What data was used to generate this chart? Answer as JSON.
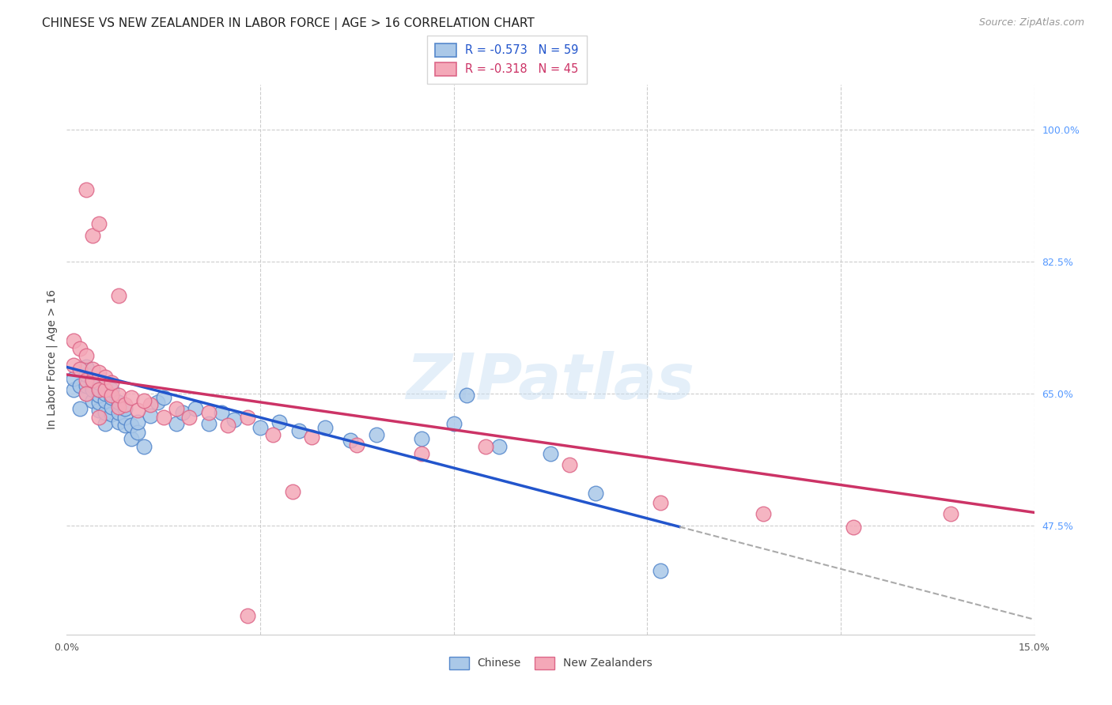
{
  "title": "CHINESE VS NEW ZEALANDER IN LABOR FORCE | AGE > 16 CORRELATION CHART",
  "source": "Source: ZipAtlas.com",
  "ylabel": "In Labor Force | Age > 16",
  "xmin": 0.0,
  "xmax": 0.15,
  "ymin": 0.33,
  "ymax": 1.06,
  "right_yticks": [
    1.0,
    0.825,
    0.65,
    0.475
  ],
  "right_yticklabels": [
    "100.0%",
    "82.5%",
    "65.0%",
    "47.5%"
  ],
  "xticks": [
    0.0,
    0.03,
    0.06,
    0.09,
    0.12,
    0.15
  ],
  "legend_r1": "-0.573",
  "legend_n1": "59",
  "legend_r2": "-0.318",
  "legend_n2": "45",
  "chinese_color": "#aac8e8",
  "nz_color": "#f4a8b8",
  "chinese_edge": "#5588cc",
  "nz_edge": "#dd6688",
  "trend1_color": "#2255cc",
  "trend2_color": "#cc3366",
  "dashed_color": "#aaaaaa",
  "background_color": "#ffffff",
  "grid_color": "#cccccc",
  "watermark": "ZIPatlas",
  "trend1_x0": 0.0,
  "trend1_y0": 0.685,
  "trend1_x1": 0.095,
  "trend1_y1": 0.473,
  "trend1_xend": 0.15,
  "trend1_yend": 0.35,
  "trend2_x0": 0.0,
  "trend2_y0": 0.675,
  "trend2_x1": 0.15,
  "trend2_y1": 0.492,
  "chinese_x": [
    0.001,
    0.001,
    0.002,
    0.002,
    0.003,
    0.003,
    0.003,
    0.003,
    0.004,
    0.004,
    0.004,
    0.004,
    0.005,
    0.005,
    0.005,
    0.005,
    0.005,
    0.006,
    0.006,
    0.006,
    0.006,
    0.006,
    0.007,
    0.007,
    0.007,
    0.007,
    0.008,
    0.008,
    0.008,
    0.009,
    0.009,
    0.009,
    0.01,
    0.01,
    0.011,
    0.011,
    0.012,
    0.013,
    0.014,
    0.015,
    0.017,
    0.018,
    0.02,
    0.022,
    0.024,
    0.026,
    0.03,
    0.033,
    0.036,
    0.04,
    0.044,
    0.048,
    0.055,
    0.06,
    0.067,
    0.075,
    0.082,
    0.092,
    0.062
  ],
  "chinese_y": [
    0.655,
    0.67,
    0.63,
    0.66,
    0.65,
    0.66,
    0.675,
    0.685,
    0.64,
    0.66,
    0.655,
    0.668,
    0.628,
    0.638,
    0.648,
    0.655,
    0.665,
    0.61,
    0.625,
    0.64,
    0.65,
    0.662,
    0.622,
    0.632,
    0.645,
    0.655,
    0.612,
    0.625,
    0.638,
    0.608,
    0.618,
    0.63,
    0.59,
    0.608,
    0.598,
    0.612,
    0.58,
    0.62,
    0.638,
    0.645,
    0.61,
    0.625,
    0.63,
    0.61,
    0.625,
    0.615,
    0.605,
    0.612,
    0.6,
    0.605,
    0.588,
    0.595,
    0.59,
    0.61,
    0.58,
    0.57,
    0.518,
    0.415,
    0.648
  ],
  "nz_x": [
    0.001,
    0.001,
    0.002,
    0.002,
    0.003,
    0.003,
    0.003,
    0.004,
    0.004,
    0.005,
    0.005,
    0.005,
    0.006,
    0.006,
    0.007,
    0.007,
    0.008,
    0.008,
    0.009,
    0.01,
    0.011,
    0.013,
    0.015,
    0.017,
    0.019,
    0.022,
    0.025,
    0.028,
    0.032,
    0.038,
    0.045,
    0.055,
    0.065,
    0.078,
    0.092,
    0.108,
    0.122,
    0.137,
    0.003,
    0.004,
    0.005,
    0.008,
    0.012,
    0.035,
    0.028
  ],
  "nz_y": [
    0.72,
    0.688,
    0.71,
    0.682,
    0.668,
    0.7,
    0.65,
    0.668,
    0.682,
    0.655,
    0.678,
    0.618,
    0.655,
    0.672,
    0.648,
    0.665,
    0.632,
    0.648,
    0.635,
    0.645,
    0.628,
    0.635,
    0.618,
    0.63,
    0.618,
    0.625,
    0.608,
    0.618,
    0.595,
    0.592,
    0.582,
    0.57,
    0.58,
    0.555,
    0.505,
    0.49,
    0.472,
    0.49,
    0.92,
    0.86,
    0.875,
    0.78,
    0.64,
    0.52,
    0.355
  ]
}
